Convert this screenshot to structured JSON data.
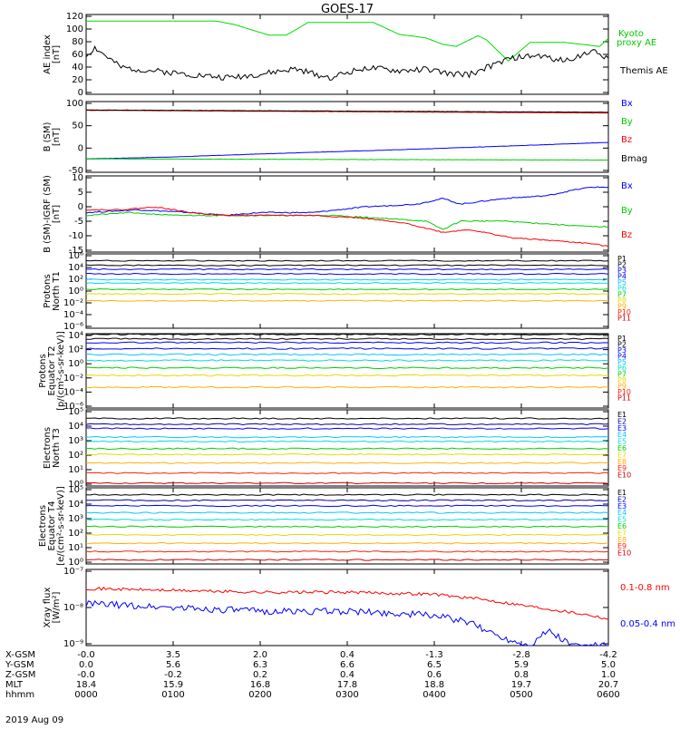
{
  "title": "GOES-17",
  "date": "2019 Aug 09",
  "colors": {
    "p": [
      "#000000",
      "#000000",
      "#0000ff",
      "#0000ff",
      "#00c8ff",
      "#00dcdc",
      "#00d000",
      "#e8d800",
      "#ffb000",
      "#ff2000",
      "#d00000"
    ],
    "e": [
      "#000000",
      "#0000a0",
      "#0000ff",
      "#00c8ff",
      "#00dcdc",
      "#00d000",
      "#e8d800",
      "#ffb000",
      "#ff2000",
      "#d00000"
    ]
  },
  "panels": [
    {
      "id": "ae",
      "ylabel": [
        "AE index",
        "[nT]"
      ],
      "ticks": [
        "120",
        "100",
        "80",
        "60",
        "40",
        "20",
        "0"
      ],
      "legend": [
        {
          "t": "Kyoto",
          "c": "#00cc00"
        },
        {
          "t": "proxy AE",
          "c": "#00cc00"
        },
        {
          "t": "Themis AE",
          "c": "#000000"
        }
      ]
    },
    {
      "id": "bsm",
      "ylabel": [
        "B (SM)",
        "[nT]"
      ],
      "ticks": [
        "100",
        "50",
        "0",
        "-50"
      ],
      "legend": [
        {
          "t": "Bx",
          "c": "#0000ff"
        },
        {
          "t": "By",
          "c": "#00cc00"
        },
        {
          "t": "Bz",
          "c": "#ff0000"
        },
        {
          "t": "Bmag",
          "c": "#000000"
        }
      ]
    },
    {
      "id": "bigrf",
      "ylabel": [
        "B (SM)-IGRF (SM)",
        "[nT]"
      ],
      "ticks": [
        "10",
        "5",
        "0",
        "-5",
        "-10",
        "-15"
      ],
      "legend": [
        {
          "t": "Bx",
          "c": "#0000ff"
        },
        {
          "t": "By",
          "c": "#00cc00"
        },
        {
          "t": "Bz",
          "c": "#ff0000"
        }
      ]
    },
    {
      "id": "pnorth",
      "ylabel": [
        "Protons",
        "North T1"
      ],
      "ticks": [
        "10⁶",
        "10⁴",
        "10²",
        "10⁰",
        "10⁻²",
        "10⁻⁴",
        "10⁻⁶"
      ],
      "legend": [
        "P1",
        "P2",
        "P3",
        "P4",
        "P5",
        "P6",
        "P7",
        "P8",
        "P9",
        "P10",
        "P11"
      ]
    },
    {
      "id": "peq",
      "ylabel": [
        "Protons",
        "Equator T2",
        "[p/(cm²-s-sr-keV)]"
      ],
      "ticks": [
        "10⁴",
        "10²",
        "10⁰",
        "10⁻²",
        "10⁻⁴",
        "10⁻⁶"
      ],
      "legend": [
        "P1",
        "P2",
        "P3",
        "P4",
        "P5",
        "P6",
        "P7",
        "P8",
        "P9",
        "P10",
        "P11"
      ]
    },
    {
      "id": "enorth",
      "ylabel": [
        "Electrons",
        "North T3"
      ],
      "ticks": [
        "10⁵",
        "10⁴",
        "10³",
        "10²",
        "10¹",
        "10⁰"
      ],
      "legend": [
        "E1",
        "E2",
        "E3",
        "E4",
        "E5",
        "E6",
        "E7",
        "E8",
        "E9",
        "E10"
      ]
    },
    {
      "id": "eeq",
      "ylabel": [
        "Electrons",
        "Equator T4",
        "[e/(cm²-s-sr-keV)]"
      ],
      "ticks": [
        "10⁵",
        "10⁴",
        "10³",
        "10²",
        "10¹",
        "10⁰"
      ],
      "legend": [
        "E1",
        "E2",
        "E3",
        "E4",
        "E5",
        "E6",
        "E7",
        "E8",
        "E9",
        "E10"
      ]
    },
    {
      "id": "xray",
      "ylabel": [
        "Xray flux",
        "[W/m²]"
      ],
      "ticks": [
        "10⁻⁷",
        "10⁻⁸",
        "10⁻⁹"
      ],
      "legend": [
        {
          "t": "0.1-0.8 nm",
          "c": "#ff0000"
        },
        {
          "t": "0.05-0.4 nm",
          "c": "#0000ff"
        }
      ]
    }
  ],
  "bottom_axis": {
    "labels": [
      "X-GSM",
      "Y-GSM",
      "Z-GSM",
      "MLT",
      "hhmm"
    ],
    "rows": [
      [
        "-0.0",
        "3.5",
        "2.0",
        "0.4",
        "-1.3",
        "-2.8",
        "-4.2"
      ],
      [
        "0.0",
        "5.6",
        "6.3",
        "6.6",
        "6.5",
        "5.9",
        "5.0"
      ],
      [
        "-0.0",
        "-0.2",
        "0.2",
        "0.4",
        "0.6",
        "0.8",
        "1.0"
      ],
      [
        "18.4",
        "15.9",
        "16.8",
        "17.8",
        "18.8",
        "19.7",
        "20.7"
      ],
      [
        "0000",
        "0100",
        "0200",
        "0300",
        "0400",
        "0500",
        "0600"
      ]
    ]
  },
  "chart_data": {
    "type": "line",
    "title": "GOES-17",
    "x_axis_hhmm": [
      "0000",
      "0100",
      "0200",
      "0300",
      "0400",
      "0500",
      "0600"
    ],
    "panels": [
      {
        "name": "AE index",
        "ylim": [
          0,
          120
        ],
        "series": [
          {
            "name": "Kyoto proxy AE",
            "x_hours": [
              0,
              1.5,
              1.7,
              2.1,
              2.3,
              2.55,
              2.8,
              3.3,
              3.6,
              3.9,
              4.1,
              4.25,
              4.5,
              4.6,
              4.85,
              5.1,
              5.5,
              5.9,
              6.0
            ],
            "values": [
              110,
              110,
              105,
              89,
              89,
              108,
              108,
              108,
              90,
              85,
              75,
              72,
              88,
              82,
              50,
              78,
              78,
              72,
              84
            ]
          },
          {
            "name": "Themis AE",
            "x_hours": [
              0,
              0.1,
              0.4,
              0.8,
              1.2,
              1.6,
              2.0,
              2.4,
              2.8,
              3.2,
              3.6,
              3.9,
              4.2,
              4.4,
              4.7,
              4.9,
              5.2,
              5.5,
              5.8,
              6.0
            ],
            "values": [
              58,
              70,
              40,
              35,
              30,
              25,
              30,
              38,
              25,
              40,
              35,
              38,
              30,
              30,
              45,
              55,
              58,
              50,
              65,
              55
            ]
          }
        ]
      },
      {
        "name": "B (SM)",
        "ylim": [
          -60,
          125
        ],
        "series": [
          {
            "name": "Bx",
            "x_hours": [
              0,
              1,
              2,
              3,
              4,
              5,
              6
            ],
            "values": [
              -25,
              -20,
              -12,
              -5,
              2,
              10,
              18
            ]
          },
          {
            "name": "By",
            "x_hours": [
              0,
              6
            ],
            "values": [
              -25,
              -28
            ]
          },
          {
            "name": "Bz",
            "x_hours": [
              0,
              6
            ],
            "values": [
              102,
              95
            ]
          },
          {
            "name": "Bmag",
            "x_hours": [
              0,
              6
            ],
            "values": [
              103,
              97
            ]
          }
        ]
      },
      {
        "name": "B (SM)-IGRF (SM)",
        "ylim": [
          -16,
          11
        ],
        "series": [
          {
            "name": "Bx",
            "x_hours": [
              0,
              0.6,
              1.2,
              1.6,
              2.0,
              2.6,
              3.2,
              3.8,
              4.1,
              4.3,
              4.8,
              5.3,
              5.6,
              5.8,
              6.0
            ],
            "values": [
              -2,
              -1,
              -2,
              -3,
              -2,
              -2,
              0,
              1,
              3,
              1,
              3,
              4,
              6,
              7,
              7
            ]
          },
          {
            "name": "By",
            "x_hours": [
              0,
              0.5,
              1.0,
              1.6,
              2.2,
              2.8,
              3.4,
              3.9,
              4.1,
              4.3,
              4.8,
              5.3,
              5.8,
              6.0
            ],
            "values": [
              -3,
              -2,
              -3,
              -3,
              -3,
              -3,
              -4,
              -5,
              -8,
              -5,
              -5,
              -6,
              -7,
              -7
            ]
          },
          {
            "name": "Bz",
            "x_hours": [
              0,
              0.4,
              0.8,
              1.2,
              1.6,
              2.1,
              2.6,
              3.2,
              3.7,
              4.1,
              4.4,
              4.9,
              5.4,
              5.8,
              6.0
            ],
            "values": [
              -1,
              -1,
              0,
              -2,
              -3,
              -3,
              -3,
              -4,
              -6,
              -9,
              -8,
              -11,
              -12,
              -13,
              -14
            ]
          }
        ]
      },
      {
        "name": "Protons North T1",
        "log": true,
        "ylim": [
          -7,
          6
        ],
        "series": [
          {
            "name": "P1",
            "log10_value": 4.8
          },
          {
            "name": "P2",
            "log10_value": 4.0
          },
          {
            "name": "P3",
            "log10_value": 3.3
          },
          {
            "name": "P4",
            "log10_value": 2.5
          },
          {
            "name": "P5",
            "log10_value": 1.5
          },
          {
            "name": "P6",
            "log10_value": 0.9
          },
          {
            "name": "P7",
            "log10_value": -0.2
          },
          {
            "name": "P8",
            "log10_value": -1.0
          },
          {
            "name": "P9",
            "log10_value": -2.2
          }
        ]
      },
      {
        "name": "Protons Equator T2",
        "log": true,
        "ylim": [
          -6,
          4
        ],
        "series": [
          {
            "name": "P1",
            "log10_value": 3.9
          },
          {
            "name": "P2",
            "log10_value": 3.3
          },
          {
            "name": "P3",
            "log10_value": 2.8
          },
          {
            "name": "P4",
            "log10_value": 2.0
          },
          {
            "name": "P5",
            "log10_value": 1.2
          },
          {
            "name": "P6",
            "log10_value": 0.4
          },
          {
            "name": "P7",
            "log10_value": -0.6
          },
          {
            "name": "P8",
            "log10_value": -1.6
          },
          {
            "name": "P9",
            "log10_value": -3.2
          }
        ]
      },
      {
        "name": "Electrons North T3",
        "log": true,
        "ylim": [
          -0.3,
          5
        ],
        "series": [
          {
            "name": "E1",
            "log10_value": 4.4
          },
          {
            "name": "E2",
            "log10_value": 4.0
          },
          {
            "name": "E3",
            "log10_value": 3.7
          },
          {
            "name": "E4",
            "log10_value": 3.1
          },
          {
            "name": "E5",
            "log10_value": 2.8
          },
          {
            "name": "E6",
            "log10_value": 2.3
          },
          {
            "name": "E7",
            "log10_value": 1.9
          },
          {
            "name": "E8",
            "log10_value": 1.3
          },
          {
            "name": "E9",
            "log10_value": 0.6
          },
          {
            "name": "E10",
            "log10_value": -0.1
          }
        ]
      },
      {
        "name": "Electrons Equator T4",
        "log": true,
        "ylim": [
          -0.5,
          5
        ],
        "series": [
          {
            "name": "E1",
            "log10_value": 4.5
          },
          {
            "name": "E2",
            "log10_value": 4.1
          },
          {
            "name": "E3",
            "log10_value": 3.7
          },
          {
            "name": "E4",
            "log10_value": 3.2
          },
          {
            "name": "E5",
            "log10_value": 2.7
          },
          {
            "name": "E6",
            "log10_value": 2.2
          },
          {
            "name": "E7",
            "log10_value": 1.6
          },
          {
            "name": "E8",
            "log10_value": 1.0
          },
          {
            "name": "E9",
            "log10_value": 0.4
          },
          {
            "name": "E10",
            "log10_value": -0.2
          }
        ]
      },
      {
        "name": "Xray flux",
        "log": true,
        "ylim": [
          -9,
          -7
        ],
        "series": [
          {
            "name": "0.1-0.8 nm",
            "x_hours": [
              0,
              1,
              2,
              3,
              4,
              4.6,
              5.2,
              5.8,
              6.0
            ],
            "log10_value": [
              -7.5,
              -7.55,
              -7.6,
              -7.6,
              -7.65,
              -7.8,
              -8.0,
              -8.2,
              -8.3
            ]
          },
          {
            "name": "0.05-0.4 nm",
            "x_hours": [
              0,
              1,
              2,
              3,
              4,
              4.4,
              4.8,
              5.1,
              5.3,
              5.6,
              6.0
            ],
            "log10_value": [
              -7.9,
              -8.0,
              -8.1,
              -8.1,
              -8.2,
              -8.4,
              -8.8,
              -9.0,
              -8.6,
              -9.0,
              -9.0
            ]
          }
        ]
      }
    ]
  }
}
